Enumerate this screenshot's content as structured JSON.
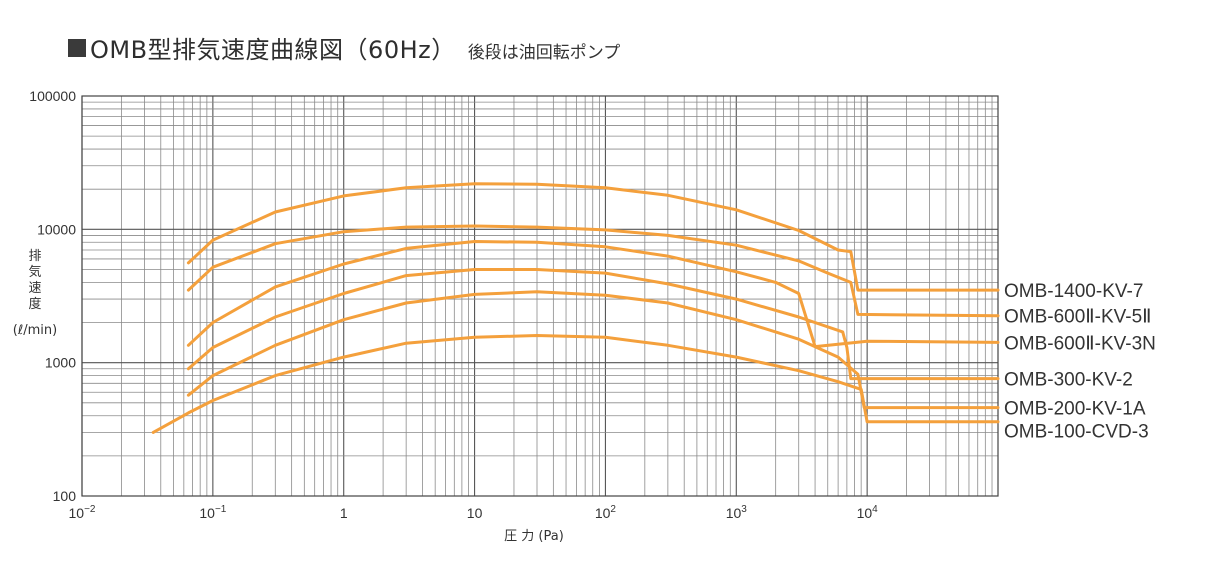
{
  "header": {
    "title": "OMB型排気速度曲線図（60Hz）",
    "subtitle": "後段は油回転ポンプ"
  },
  "chart_data": {
    "type": "line",
    "title": "OMB型排気速度曲線図（60Hz）",
    "subtitle": "後段は油回転ポンプ",
    "xlabel": "圧 力 (Pa)",
    "ylabel": "排気速度 (ℓ/min)",
    "ylabel_chars": [
      "排",
      "気",
      "速",
      "度"
    ],
    "ylabel_unit": "(ℓ/min)",
    "x_scale": "log",
    "y_scale": "log",
    "xlim": [
      0.01,
      100000
    ],
    "ylim": [
      100,
      100000
    ],
    "grid": true,
    "line_color": "#f4a03c",
    "x_ticks": [
      {
        "value": 0.01,
        "base": "10",
        "exp": "−2"
      },
      {
        "value": 0.1,
        "base": "10",
        "exp": "−1"
      },
      {
        "value": 1,
        "base": "1",
        "exp": ""
      },
      {
        "value": 10,
        "base": "10",
        "exp": ""
      },
      {
        "value": 100,
        "base": "10",
        "exp": "2"
      },
      {
        "value": 1000,
        "base": "10",
        "exp": "3"
      },
      {
        "value": 10000,
        "base": "10",
        "exp": "4"
      }
    ],
    "y_ticks": [
      {
        "value": 100,
        "label": "100"
      },
      {
        "value": 1000,
        "label": "1000"
      },
      {
        "value": 10000,
        "label": "10000"
      },
      {
        "value": 100000,
        "label": "100000"
      }
    ],
    "series": [
      {
        "name": "OMB-1400-KV-7",
        "points": [
          [
            0.065,
            5600
          ],
          [
            0.1,
            8300
          ],
          [
            0.3,
            13500
          ],
          [
            1,
            17800
          ],
          [
            3,
            20500
          ],
          [
            10,
            22000
          ],
          [
            30,
            21800
          ],
          [
            100,
            20500
          ],
          [
            300,
            18000
          ],
          [
            1000,
            14000
          ],
          [
            3000,
            9800
          ],
          [
            6000,
            7000
          ],
          [
            7500,
            6800
          ],
          [
            8500,
            3500
          ],
          [
            100000,
            3500
          ]
        ]
      },
      {
        "name": "OMB-600Ⅱ-KV-5Ⅱ",
        "points": [
          [
            0.065,
            3500
          ],
          [
            0.1,
            5200
          ],
          [
            0.3,
            7800
          ],
          [
            1,
            9600
          ],
          [
            3,
            10400
          ],
          [
            10,
            10600
          ],
          [
            30,
            10400
          ],
          [
            100,
            9900
          ],
          [
            300,
            9000
          ],
          [
            1000,
            7600
          ],
          [
            3000,
            5800
          ],
          [
            5000,
            4700
          ],
          [
            7500,
            4000
          ],
          [
            8500,
            2300
          ],
          [
            100000,
            2250
          ]
        ]
      },
      {
        "name": "OMB-600Ⅱ-KV-3N",
        "points": [
          [
            0.065,
            1350
          ],
          [
            0.1,
            2000
          ],
          [
            0.3,
            3700
          ],
          [
            1,
            5500
          ],
          [
            3,
            7200
          ],
          [
            10,
            8100
          ],
          [
            30,
            8000
          ],
          [
            100,
            7400
          ],
          [
            300,
            6300
          ],
          [
            1000,
            4800
          ],
          [
            2000,
            4000
          ],
          [
            3000,
            3300
          ],
          [
            4000,
            1320
          ],
          [
            10000,
            1450
          ],
          [
            100000,
            1420
          ]
        ]
      },
      {
        "name": "OMB-300-KV-2",
        "points": [
          [
            0.065,
            900
          ],
          [
            0.1,
            1300
          ],
          [
            0.3,
            2200
          ],
          [
            1,
            3300
          ],
          [
            3,
            4500
          ],
          [
            10,
            5000
          ],
          [
            30,
            5000
          ],
          [
            100,
            4700
          ],
          [
            300,
            3900
          ],
          [
            1000,
            3000
          ],
          [
            3000,
            2200
          ],
          [
            6500,
            1700
          ],
          [
            7000,
            1300
          ],
          [
            7500,
            760
          ],
          [
            100000,
            760
          ]
        ]
      },
      {
        "name": "OMB-200-KV-1A",
        "points": [
          [
            0.065,
            570
          ],
          [
            0.1,
            800
          ],
          [
            0.3,
            1350
          ],
          [
            1,
            2100
          ],
          [
            3,
            2800
          ],
          [
            10,
            3250
          ],
          [
            30,
            3400
          ],
          [
            100,
            3200
          ],
          [
            300,
            2800
          ],
          [
            1000,
            2100
          ],
          [
            3000,
            1500
          ],
          [
            6000,
            1100
          ],
          [
            8500,
            820
          ],
          [
            9500,
            460
          ],
          [
            100000,
            460
          ]
        ]
      },
      {
        "name": "OMB-100-CVD-3",
        "points": [
          [
            0.035,
            300
          ],
          [
            0.065,
            420
          ],
          [
            0.1,
            520
          ],
          [
            0.3,
            800
          ],
          [
            1,
            1100
          ],
          [
            3,
            1400
          ],
          [
            10,
            1550
          ],
          [
            30,
            1600
          ],
          [
            100,
            1550
          ],
          [
            300,
            1350
          ],
          [
            1000,
            1100
          ],
          [
            3000,
            870
          ],
          [
            6000,
            720
          ],
          [
            9000,
            630
          ],
          [
            10000,
            360
          ],
          [
            100000,
            360
          ]
        ]
      }
    ]
  }
}
